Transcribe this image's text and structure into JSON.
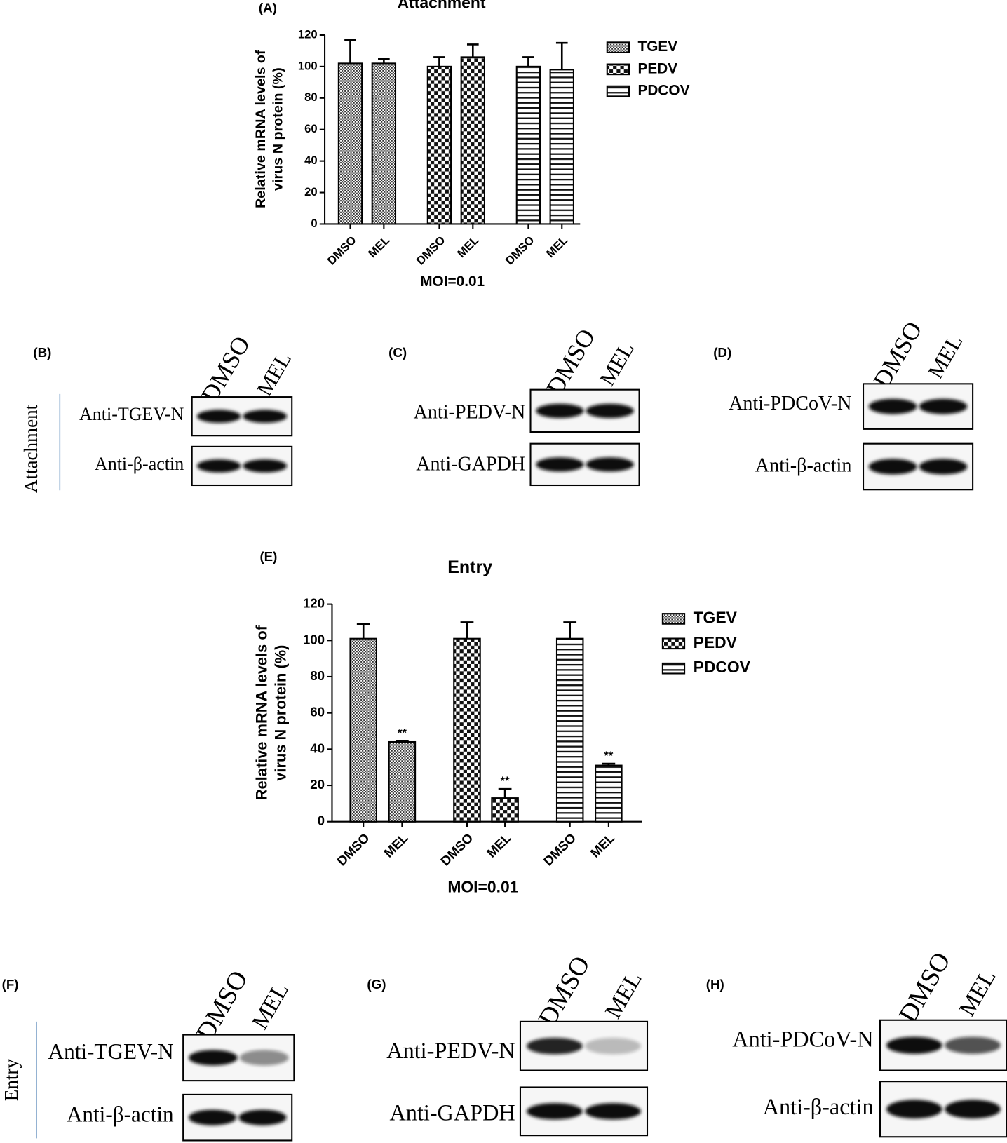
{
  "chart_data": [
    {
      "type": "bar",
      "panel": "(A)",
      "title": "Attachment",
      "ylabel": [
        "Relative mRNA levels of",
        "virus N protein (%)"
      ],
      "xlabel": "MOI=0.01",
      "categories": [
        "DMSO",
        "MEL",
        "DMSO",
        "MEL",
        "DMSO",
        "MEL"
      ],
      "series": [
        {
          "name": "TGEV",
          "pattern": "fine-check",
          "values": [
            102,
            102,
            null,
            null,
            null,
            null
          ],
          "errors": [
            15,
            3,
            null,
            null,
            null,
            null
          ]
        },
        {
          "name": "PEDV",
          "pattern": "coarse-check",
          "values": [
            null,
            null,
            100,
            106,
            null,
            null
          ],
          "errors": [
            null,
            null,
            6,
            8,
            null,
            null
          ]
        },
        {
          "name": "PDCOV",
          "pattern": "stripes",
          "values": [
            null,
            null,
            null,
            null,
            100,
            98
          ],
          "errors": [
            null,
            null,
            null,
            null,
            6,
            17
          ]
        }
      ],
      "ylim": [
        0,
        120
      ],
      "yticks": [
        0,
        20,
        40,
        60,
        80,
        100,
        120
      ],
      "legend": "right"
    },
    {
      "type": "bar",
      "panel": "(E)",
      "title": "Entry",
      "ylabel": [
        "Relative mRNA levels of",
        "virus N protein (%)"
      ],
      "xlabel": "MOI=0.01",
      "categories": [
        "DMSO",
        "MEL",
        "DMSO",
        "MEL",
        "DMSO",
        "MEL"
      ],
      "series": [
        {
          "name": "TGEV",
          "pattern": "fine-check",
          "values": [
            101,
            44,
            null,
            null,
            null,
            null
          ],
          "errors": [
            8,
            0.5,
            null,
            null,
            null,
            null
          ],
          "annotations": [
            null,
            "**",
            null,
            null,
            null,
            null
          ]
        },
        {
          "name": "PEDV",
          "pattern": "coarse-check",
          "values": [
            null,
            null,
            101,
            13,
            null,
            null
          ],
          "errors": [
            null,
            null,
            9,
            5,
            null,
            null
          ],
          "annotations": [
            null,
            null,
            null,
            "**",
            null,
            null
          ]
        },
        {
          "name": "PDCOV",
          "pattern": "stripes",
          "values": [
            null,
            null,
            null,
            null,
            101,
            31
          ],
          "errors": [
            null,
            null,
            null,
            null,
            9,
            1
          ],
          "annotations": [
            null,
            null,
            null,
            null,
            null,
            "**"
          ]
        }
      ],
      "ylim": [
        0,
        120
      ],
      "yticks": [
        0,
        20,
        40,
        60,
        80,
        100,
        120
      ],
      "legend": "right"
    }
  ],
  "blots": [
    {
      "panel": "(B)",
      "side": "Attachment",
      "lanes": [
        "DMSO",
        "MEL"
      ],
      "rows": [
        "Anti-TGEV-N",
        "Anti-β-actin"
      ]
    },
    {
      "panel": "(C)",
      "lanes": [
        "DMSO",
        "MEL"
      ],
      "rows": [
        "Anti-PEDV-N",
        "Anti-GAPDH"
      ]
    },
    {
      "panel": "(D)",
      "lanes": [
        "DMSO",
        "MEL"
      ],
      "rows": [
        "Anti-PDCoV-N",
        "Anti-β-actin"
      ]
    },
    {
      "panel": "(F)",
      "side": "Entry",
      "lanes": [
        "DMSO",
        "MEL"
      ],
      "rows": [
        "Anti-TGEV-N",
        "Anti-β-actin"
      ]
    },
    {
      "panel": "(G)",
      "lanes": [
        "DMSO",
        "MEL"
      ],
      "rows": [
        "Anti-PEDV-N",
        "Anti-GAPDH"
      ]
    },
    {
      "panel": "(H)",
      "lanes": [
        "DMSO",
        "MEL"
      ],
      "rows": [
        "Anti-PDCoV-N",
        "Anti-β-actin"
      ]
    }
  ]
}
